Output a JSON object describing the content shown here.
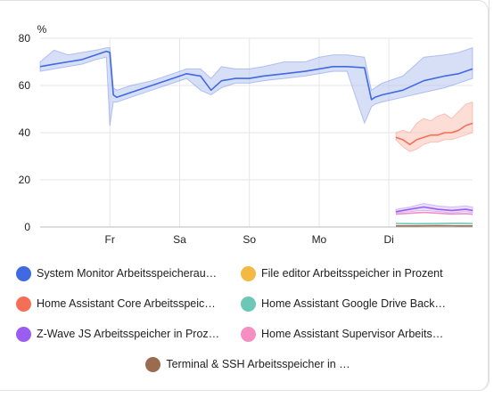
{
  "chart_data": {
    "type": "line",
    "ylabel": "%",
    "ylim": [
      0,
      80
    ],
    "y_ticks": [
      "0",
      "20",
      "40",
      "60",
      "80"
    ],
    "x_ticks": [
      "Fr",
      "Sa",
      "So",
      "Mo",
      "Di"
    ],
    "grid": true,
    "legend_position": "bottom",
    "series": [
      {
        "name": "System Monitor Arbeitsspeicherau…",
        "color": "#4169e1",
        "band_color": "#b7c4f1",
        "x": [
          0,
          0.2,
          0.4,
          0.6,
          0.8,
          0.95,
          1.0,
          1.05,
          1.1,
          1.3,
          1.6,
          1.9,
          2.1,
          2.3,
          2.45,
          2.6,
          2.8,
          3.0,
          3.2,
          3.5,
          3.8,
          4.0,
          4.2,
          4.4,
          4.65,
          4.75,
          4.8,
          4.9,
          5.2,
          5.5,
          5.8,
          6.0,
          6.2
        ],
        "values": [
          68,
          69,
          70,
          71,
          73,
          74.5,
          74,
          56,
          55,
          57,
          60,
          63,
          65,
          64,
          58,
          62,
          63,
          63,
          64,
          65,
          66,
          67,
          68,
          68,
          67.5,
          54,
          55,
          56,
          58,
          62,
          64,
          65,
          67
        ],
        "min": [
          66,
          67,
          68,
          69,
          71,
          72,
          43,
          53,
          53,
          55,
          58,
          61,
          63,
          58,
          56,
          59,
          61,
          61,
          62,
          63,
          64,
          65,
          66,
          66,
          44,
          51,
          52,
          53,
          55,
          57,
          59,
          61,
          63
        ],
        "max": [
          70,
          75,
          73,
          74,
          75,
          76,
          76,
          59,
          58,
          60,
          62,
          65,
          67,
          67,
          63,
          68,
          67,
          67,
          68,
          70,
          70,
          72,
          73,
          73,
          72,
          58,
          59,
          61,
          64,
          72,
          73,
          74,
          76
        ]
      },
      {
        "name": "File editor Arbeitsspeicher in Prozent",
        "color": "#f4b942",
        "x": [
          5.2,
          6.2
        ],
        "values": [
          null,
          null
        ]
      },
      {
        "name": "Home Assistant Core Arbeitsspeic…",
        "color": "#f56e56",
        "band_color": "#f9c2b6",
        "x": [
          5.1,
          5.2,
          5.3,
          5.4,
          5.5,
          5.6,
          5.7,
          5.8,
          5.9,
          6.0,
          6.1,
          6.2
        ],
        "values": [
          38,
          37,
          35,
          37,
          38,
          39,
          39,
          40,
          40,
          41,
          43,
          44
        ],
        "min": [
          37,
          34,
          32,
          33,
          35,
          36,
          36,
          37,
          37,
          38,
          39,
          40
        ],
        "max": [
          40,
          41,
          40,
          44,
          46,
          45,
          47,
          48,
          46,
          49,
          52,
          53
        ]
      },
      {
        "name": "Home Assistant Google Drive Back…",
        "color": "#6cc7b6",
        "x": [
          5.1,
          5.4,
          5.7,
          6.0,
          6.2
        ],
        "values": [
          1.5,
          1.4,
          1.5,
          1.6,
          1.5
        ]
      },
      {
        "name": "Z-Wave JS Arbeitsspeicher in Proz…",
        "color": "#9b5cf0",
        "band_color": "#d6c2fb",
        "x": [
          5.1,
          5.3,
          5.5,
          5.7,
          5.9,
          6.1,
          6.2
        ],
        "values": [
          6.5,
          7.5,
          8.5,
          7.5,
          7.0,
          7.5,
          7.0
        ],
        "min": [
          6.0,
          6.5,
          7.0,
          6.5,
          6.0,
          6.5,
          6.0
        ],
        "max": [
          7.5,
          8.5,
          10.0,
          9.0,
          8.5,
          9.0,
          8.5
        ]
      },
      {
        "name": "Home Assistant Supervisor Arbeits…",
        "color": "#f58fc2",
        "x": [
          5.1,
          5.3,
          5.5,
          5.7,
          5.9,
          6.1,
          6.2
        ],
        "values": [
          5.5,
          5.8,
          6.2,
          5.9,
          5.5,
          5.7,
          5.4
        ]
      },
      {
        "name": "Terminal & SSH Arbeitsspeicher in …",
        "color": "#9a6b4f",
        "x": [
          5.1,
          5.4,
          5.7,
          6.0,
          6.2
        ],
        "values": [
          0.5,
          0.5,
          0.6,
          0.5,
          0.5
        ]
      }
    ]
  },
  "legend": {
    "items": [
      {
        "label": "System Monitor Arbeitsspeicherau…",
        "color": "#4169e1"
      },
      {
        "label": "File editor Arbeitsspeicher in Prozent",
        "color": "#f4b942"
      },
      {
        "label": "Home Assistant Core Arbeitsspeic…",
        "color": "#f56e56"
      },
      {
        "label": "Home Assistant Google Drive Back…",
        "color": "#6cc7b6"
      },
      {
        "label": "Z-Wave JS Arbeitsspeicher in Proz…",
        "color": "#9b5cf0"
      },
      {
        "label": "Home Assistant Supervisor Arbeits…",
        "color": "#f58fc2"
      },
      {
        "label": "Terminal & SSH Arbeitsspeicher in …",
        "color": "#9a6b4f"
      }
    ]
  }
}
